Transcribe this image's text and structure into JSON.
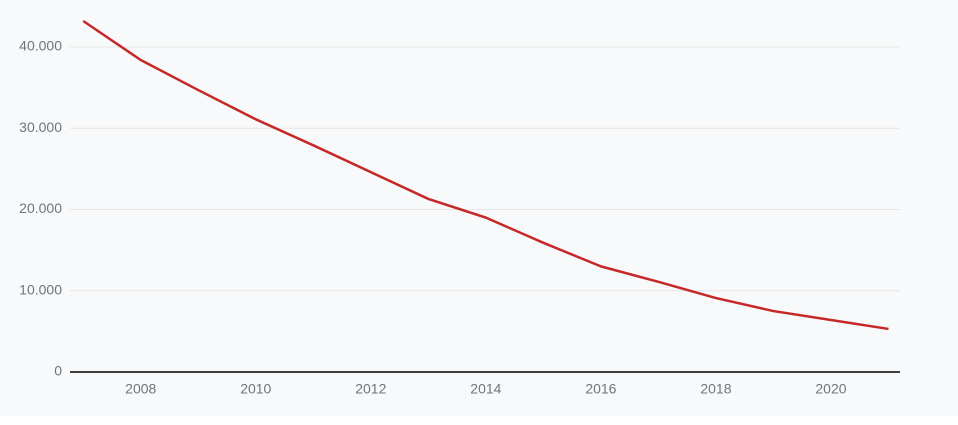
{
  "chart_data": {
    "type": "line",
    "x": [
      2007,
      2008,
      2009,
      2010,
      2011,
      2012,
      2013,
      2014,
      2015,
      2016,
      2017,
      2018,
      2019,
      2020,
      2021
    ],
    "series": [
      {
        "color": "#c62828",
        "values": [
          43200,
          38400,
          34700,
          31100,
          27900,
          24600,
          21300,
          19000,
          15900,
          13000,
          11100,
          9100,
          7500,
          6400,
          5300
        ]
      }
    ],
    "xlim": [
      2006.77,
      2021.2
    ],
    "xticks": [
      2008,
      2010,
      2012,
      2014,
      2016,
      2018,
      2020
    ],
    "ylim": [
      0,
      40000
    ],
    "yticks": [
      0,
      {
        "value": 10000,
        "label": "10.000"
      },
      {
        "value": 20000,
        "label": "20.000"
      },
      {
        "value": 30000,
        "label": "30.000"
      },
      {
        "value": 40000,
        "label": "40.000"
      }
    ],
    "grid": true
  }
}
